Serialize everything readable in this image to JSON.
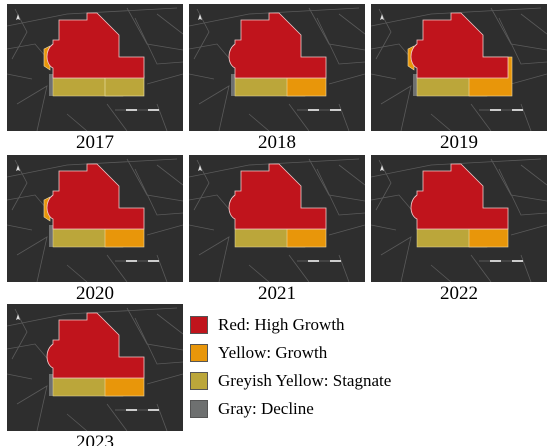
{
  "panels": [
    {
      "year": "2017",
      "east": "greyish-yellow",
      "west_strip": "yellow",
      "corner": "gray"
    },
    {
      "year": "2018",
      "east": "yellow",
      "west_strip": "none",
      "corner": "gray"
    },
    {
      "year": "2019",
      "east": "yellow-large",
      "west_strip": "yellow",
      "corner": "gray"
    },
    {
      "year": "2020",
      "east": "yellow",
      "west_strip": "yellow",
      "corner": "gray"
    },
    {
      "year": "2021",
      "east": "yellow",
      "west_strip": "none",
      "corner": "none"
    },
    {
      "year": "2022",
      "east": "yellow",
      "west_strip": "none",
      "corner": "none"
    },
    {
      "year": "2023",
      "east": "yellow",
      "west_strip": "none",
      "corner": "gray"
    }
  ],
  "legend": [
    {
      "label": "Red: High Growth",
      "color": "#c0141c"
    },
    {
      "label": "Yellow: Growth",
      "color": "#e8960a"
    },
    {
      "label": "Greyish Yellow: Stagnate",
      "color": "#bba63a"
    },
    {
      "label": "Gray: Decline",
      "color": "#6e7070"
    }
  ],
  "colors": {
    "high_growth": "#c0141c",
    "growth": "#e8960a",
    "stagnate": "#bba63a",
    "decline": "#6e7070",
    "basemap": "#2e2e2e",
    "road": "#5a5a5a"
  }
}
